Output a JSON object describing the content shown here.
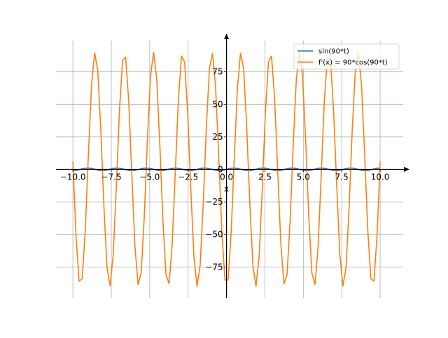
{
  "chart_data": {
    "type": "line",
    "xlabel": "x",
    "ylabel": "",
    "xlim": [
      -11.1,
      11.5
    ],
    "ylim": [
      -99,
      99
    ],
    "grid": true,
    "legend_position": "top-right",
    "x_ticks": [
      -10.0,
      -7.5,
      -5.0,
      -2.5,
      0.0,
      2.5,
      5.0,
      7.5,
      10.0
    ],
    "x_tick_labels": [
      "−10.0",
      "−7.5",
      "−5.0",
      "−2.5",
      "0.0",
      "2.5",
      "5.0",
      "7.5",
      "10.0"
    ],
    "y_ticks": [
      -75,
      -50,
      -25,
      0,
      25,
      50,
      75
    ],
    "y_tick_labels": [
      "−75",
      "−50",
      "−25",
      "0",
      "25",
      "50",
      "75"
    ],
    "series": [
      {
        "name": "sin(90*t)",
        "color": "#1f77b4",
        "function": "sin",
        "amplitude": 1,
        "frequency": 90
      },
      {
        "name": "f'(x) = 90*cos(90*t)",
        "color": "#ff7f0e",
        "function": "cos",
        "amplitude": 90,
        "frequency": 90
      }
    ],
    "sample_start": -10,
    "sample_end": 10,
    "sample_count": 100
  }
}
